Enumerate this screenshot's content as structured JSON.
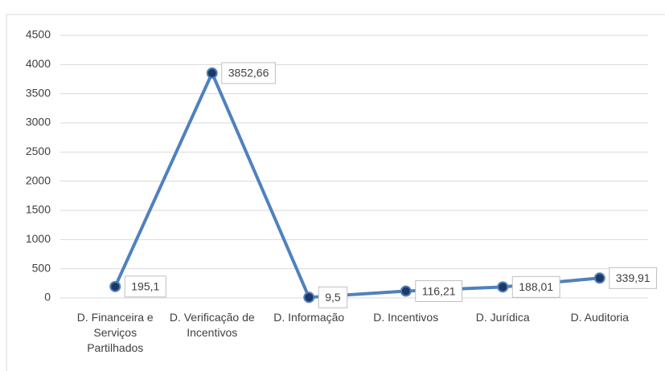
{
  "chart_data": {
    "type": "line",
    "categories": [
      "D. Financeira e Serviços Partilhados",
      "D. Verificação de Incentivos",
      "D. Informação",
      "D. Incentivos",
      "D. Jurídica",
      "D. Auditoria"
    ],
    "series": [
      {
        "color": "#4f81bd",
        "values": [
          195.1,
          3852.66,
          9.5,
          116.21,
          188.01,
          339.91
        ],
        "value_labels": [
          "195,1",
          "3852,66",
          "9,5",
          "116,21",
          "188,01",
          "339,91"
        ]
      }
    ],
    "ylim": [
      0,
      4500
    ],
    "yticks": [
      0,
      500,
      1000,
      1500,
      2000,
      2500,
      3000,
      3500,
      4000,
      4500
    ],
    "grid": true
  }
}
